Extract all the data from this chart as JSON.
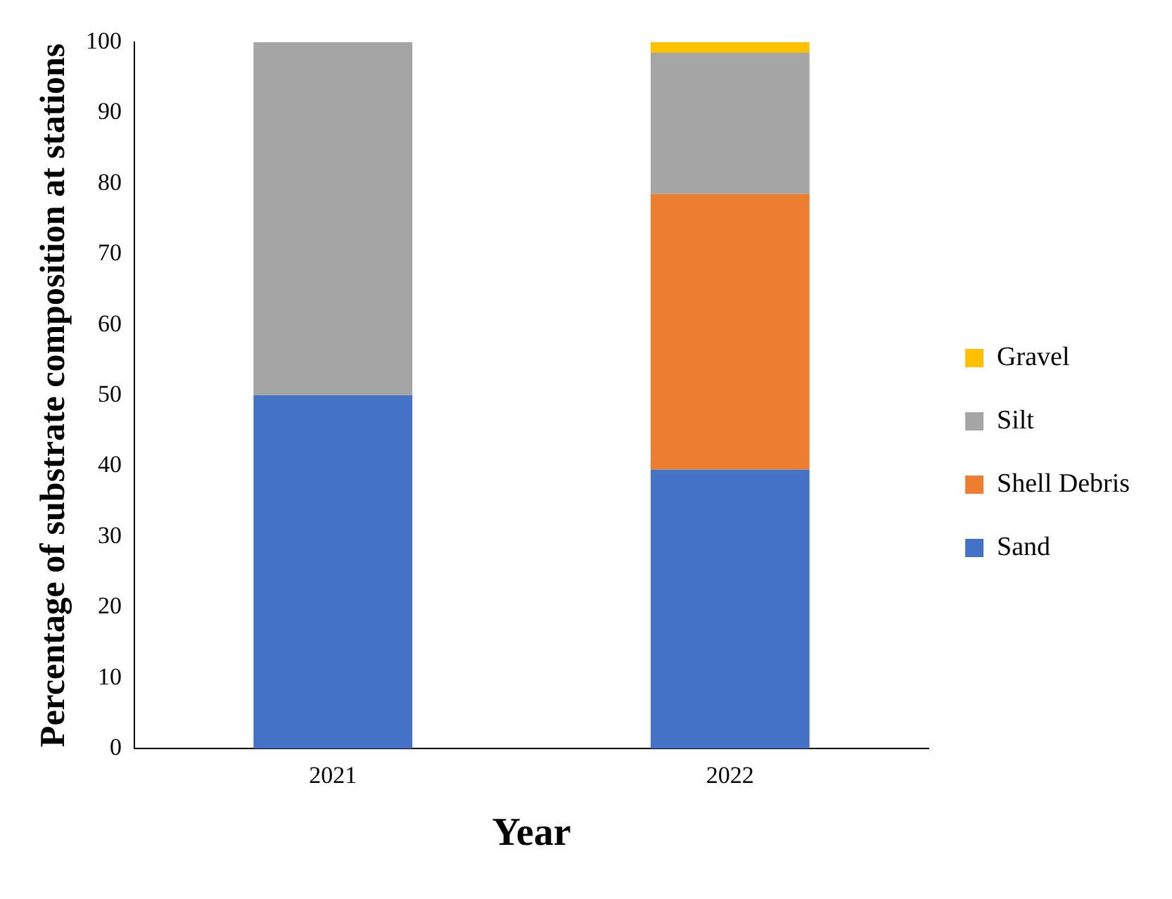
{
  "chart_data": {
    "type": "bar",
    "stacked": true,
    "xlabel": "Year",
    "ylabel": "Percentage of substrate composition at stations",
    "categories": [
      "2021",
      "2022"
    ],
    "series": [
      {
        "name": "Sand",
        "color": "#4472c4",
        "values": [
          50,
          39.5
        ]
      },
      {
        "name": "Shell Debris",
        "color": "#ed7d31",
        "values": [
          0,
          39
        ]
      },
      {
        "name": "Silt",
        "color": "#a5a5a5",
        "values": [
          50,
          20
        ]
      },
      {
        "name": "Gravel",
        "color": "#ffc000",
        "values": [
          0,
          1.5
        ]
      }
    ],
    "ylim": [
      0,
      100
    ],
    "yticks": [
      0,
      10,
      20,
      30,
      40,
      50,
      60,
      70,
      80,
      90,
      100
    ],
    "grid": false,
    "legend": "right"
  }
}
